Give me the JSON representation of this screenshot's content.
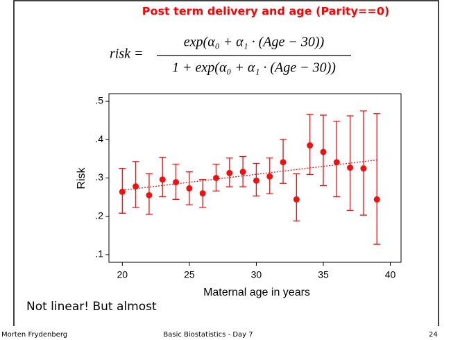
{
  "slide_title": "Post term delivery and age (Parity==0)",
  "formula": {
    "lhs": "risk =",
    "numerator": "exp(α₀ + α₁ · (Age − 30))",
    "denominator": "1 + exp(α₀ + α₁ · (Age − 30))"
  },
  "chart_data": {
    "type": "errorbar",
    "x": [
      20,
      21,
      22,
      23,
      24,
      25,
      26,
      27,
      28,
      29,
      30,
      31,
      32,
      33,
      34,
      35,
      36,
      37,
      38,
      39
    ],
    "values": [
      0.264,
      0.278,
      0.255,
      0.296,
      0.289,
      0.273,
      0.26,
      0.3,
      0.313,
      0.316,
      0.293,
      0.304,
      0.341,
      0.244,
      0.385,
      0.368,
      0.341,
      0.327,
      0.325,
      0.244
    ],
    "lower": [
      0.208,
      0.223,
      0.205,
      0.251,
      0.244,
      0.23,
      0.223,
      0.266,
      0.277,
      0.277,
      0.253,
      0.259,
      0.286,
      0.188,
      0.309,
      0.28,
      0.251,
      0.215,
      0.203,
      0.127
    ],
    "upper": [
      0.325,
      0.343,
      0.311,
      0.354,
      0.336,
      0.316,
      0.296,
      0.336,
      0.352,
      0.356,
      0.338,
      0.352,
      0.401,
      0.311,
      0.466,
      0.464,
      0.448,
      0.462,
      0.475,
      0.468
    ],
    "color": "#ee1111",
    "fit_line": {
      "x": [
        20,
        39
      ],
      "values": [
        0.268,
        0.347
      ]
    },
    "xlim": [
      19,
      40.8
    ],
    "ylim": [
      0.08,
      0.52
    ],
    "xticks": [
      20,
      25,
      30,
      35,
      40
    ],
    "yticks": [
      {
        "value": 0.1,
        "label": ".1"
      },
      {
        "value": 0.2,
        "label": ".2"
      },
      {
        "value": 0.3,
        "label": ".3"
      },
      {
        "value": 0.4,
        "label": ".4"
      },
      {
        "value": 0.5,
        "label": ".5"
      }
    ],
    "x_label": "Maternal age in years",
    "y_label": "Risk",
    "grid": false
  },
  "note": "Not linear! But almost",
  "footer": {
    "author": "Morten Frydenberg",
    "course": "Basic Biostatistics - Day 7",
    "page": "24"
  }
}
